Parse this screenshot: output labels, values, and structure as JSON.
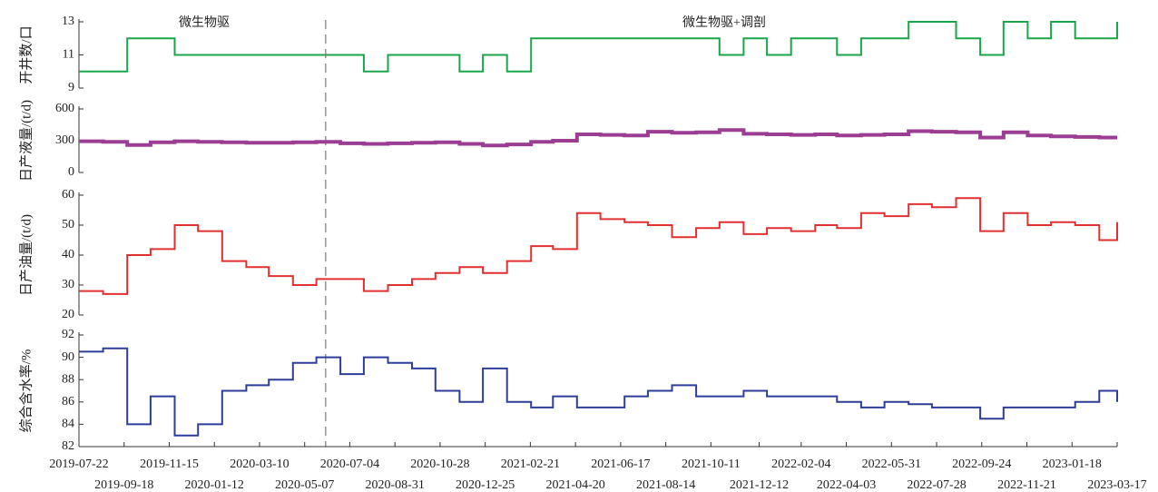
{
  "chart_data": [
    {
      "type": "line",
      "ylabel": "开井数/口",
      "ylim": [
        9,
        13
      ],
      "yticks": [
        9,
        11,
        13
      ],
      "annotations": [
        "微生物驱",
        "微生物驱+调剖"
      ],
      "vline": "2020-06-03",
      "x": [
        "2019-07-22",
        "2019-08-22",
        "2019-09-22",
        "2019-10-22",
        "2019-11-22",
        "2019-12-22",
        "2020-01-22",
        "2020-02-22",
        "2020-03-22",
        "2020-04-22",
        "2020-05-22",
        "2020-06-22",
        "2020-07-22",
        "2020-08-22",
        "2020-09-22",
        "2020-10-22",
        "2020-11-22",
        "2020-12-22",
        "2021-01-22",
        "2021-02-22",
        "2021-03-22",
        "2021-04-22",
        "2021-05-22",
        "2021-06-22",
        "2021-07-22",
        "2021-08-22",
        "2021-09-22",
        "2021-10-22",
        "2021-11-22",
        "2021-12-22",
        "2022-01-22",
        "2022-02-22",
        "2022-03-22",
        "2022-04-22",
        "2022-05-22",
        "2022-06-22",
        "2022-07-22",
        "2022-08-22",
        "2022-09-22",
        "2022-10-22",
        "2022-11-22",
        "2022-12-22",
        "2023-01-22",
        "2023-02-22",
        "2023-03-17"
      ],
      "series": [
        {
          "color": "#1aa54b",
          "values": [
            10,
            10,
            12,
            12,
            11,
            11,
            11,
            11,
            11,
            11,
            11,
            11,
            10,
            11,
            11,
            11,
            10,
            11,
            10,
            12,
            12,
            12,
            12,
            12,
            12,
            12,
            12,
            11,
            12,
            11,
            12,
            12,
            11,
            12,
            12,
            13,
            13,
            12,
            11,
            13,
            12,
            13,
            12,
            12,
            13
          ]
        }
      ]
    },
    {
      "type": "line",
      "ylabel": "日产液量/(t/d)",
      "ylim": [
        0,
        600
      ],
      "yticks": [
        0,
        300,
        600
      ],
      "x": [
        "2019-07-22",
        "2019-08-22",
        "2019-09-22",
        "2019-10-22",
        "2019-11-22",
        "2019-12-22",
        "2020-01-22",
        "2020-02-22",
        "2020-03-22",
        "2020-04-22",
        "2020-05-22",
        "2020-06-22",
        "2020-07-22",
        "2020-08-22",
        "2020-09-22",
        "2020-10-22",
        "2020-11-22",
        "2020-12-22",
        "2021-01-22",
        "2021-02-22",
        "2021-03-22",
        "2021-04-22",
        "2021-05-22",
        "2021-06-22",
        "2021-07-22",
        "2021-08-22",
        "2021-09-22",
        "2021-10-22",
        "2021-11-22",
        "2021-12-22",
        "2022-01-22",
        "2022-02-22",
        "2022-03-22",
        "2022-04-22",
        "2022-05-22",
        "2022-06-22",
        "2022-07-22",
        "2022-08-22",
        "2022-09-22",
        "2022-10-22",
        "2022-11-22",
        "2022-12-22",
        "2023-01-22",
        "2023-02-22",
        "2023-03-17"
      ],
      "series": [
        {
          "color": "#9b3d93",
          "values": [
            295,
            290,
            260,
            285,
            295,
            290,
            285,
            280,
            280,
            285,
            290,
            275,
            270,
            275,
            280,
            285,
            270,
            255,
            265,
            290,
            300,
            360,
            355,
            350,
            385,
            375,
            380,
            400,
            365,
            360,
            355,
            360,
            350,
            355,
            360,
            390,
            385,
            380,
            330,
            380,
            350,
            340,
            335,
            330,
            330
          ]
        }
      ]
    },
    {
      "type": "line",
      "ylabel": "日产油量/(t/d)",
      "ylim": [
        20,
        60
      ],
      "yticks": [
        20,
        30,
        40,
        50,
        60
      ],
      "x": [
        "2019-07-22",
        "2019-08-22",
        "2019-09-22",
        "2019-10-22",
        "2019-11-22",
        "2019-12-22",
        "2020-01-22",
        "2020-02-22",
        "2020-03-22",
        "2020-04-22",
        "2020-05-22",
        "2020-06-22",
        "2020-07-22",
        "2020-08-22",
        "2020-09-22",
        "2020-10-22",
        "2020-11-22",
        "2020-12-22",
        "2021-01-22",
        "2021-02-22",
        "2021-03-22",
        "2021-04-22",
        "2021-05-22",
        "2021-06-22",
        "2021-07-22",
        "2021-08-22",
        "2021-09-22",
        "2021-10-22",
        "2021-11-22",
        "2021-12-22",
        "2022-01-22",
        "2022-02-22",
        "2022-03-22",
        "2022-04-22",
        "2022-05-22",
        "2022-06-22",
        "2022-07-22",
        "2022-08-22",
        "2022-09-22",
        "2022-10-22",
        "2022-11-22",
        "2022-12-22",
        "2023-01-22",
        "2023-02-22",
        "2023-03-17"
      ],
      "series": [
        {
          "color": "#e03030",
          "values": [
            28,
            27,
            40,
            42,
            50,
            48,
            38,
            36,
            33,
            30,
            32,
            32,
            28,
            30,
            32,
            34,
            36,
            34,
            38,
            43,
            42,
            54,
            52,
            51,
            50,
            46,
            49,
            51,
            47,
            49,
            48,
            50,
            49,
            54,
            53,
            57,
            56,
            59,
            48,
            54,
            50,
            51,
            50,
            45,
            51
          ]
        }
      ]
    },
    {
      "type": "line",
      "ylabel": "综合含水率/%",
      "ylim": [
        82,
        92
      ],
      "yticks": [
        82,
        84,
        86,
        88,
        90,
        92
      ],
      "xlim": [
        "2019-07-22",
        "2023-03-17"
      ],
      "xticks": [
        "2019-07-22",
        "2019-09-18",
        "2019-11-15",
        "2020-01-12",
        "2020-03-10",
        "2020-05-07",
        "2020-07-04",
        "2020-08-31",
        "2020-10-28",
        "2020-12-25",
        "2021-02-21",
        "2021-04-20",
        "2021-06-17",
        "2021-08-14",
        "2021-10-11",
        "2021-12-12",
        "2022-02-04",
        "2022-04-03",
        "2022-05-31",
        "2022-07-28",
        "2022-09-24",
        "2022-11-21",
        "2023-01-18",
        "2023-03-17"
      ],
      "x": [
        "2019-07-22",
        "2019-08-22",
        "2019-09-22",
        "2019-10-22",
        "2019-11-22",
        "2019-12-22",
        "2020-01-22",
        "2020-02-22",
        "2020-03-22",
        "2020-04-22",
        "2020-05-22",
        "2020-06-22",
        "2020-07-22",
        "2020-08-22",
        "2020-09-22",
        "2020-10-22",
        "2020-11-22",
        "2020-12-22",
        "2021-01-22",
        "2021-02-22",
        "2021-03-22",
        "2021-04-22",
        "2021-05-22",
        "2021-06-22",
        "2021-07-22",
        "2021-08-22",
        "2021-09-22",
        "2021-10-22",
        "2021-11-22",
        "2021-12-22",
        "2022-01-22",
        "2022-02-22",
        "2022-03-22",
        "2022-04-22",
        "2022-05-22",
        "2022-06-22",
        "2022-07-22",
        "2022-08-22",
        "2022-09-22",
        "2022-10-22",
        "2022-11-22",
        "2022-12-22",
        "2023-01-22",
        "2023-02-22",
        "2023-03-17"
      ],
      "series": [
        {
          "color": "#2e3d98",
          "values": [
            90.5,
            90.8,
            84,
            86.5,
            83,
            84,
            87,
            87.5,
            88,
            89.5,
            90,
            88.5,
            90,
            89.5,
            89,
            87,
            86,
            89,
            86,
            85.5,
            86.5,
            85.5,
            85.5,
            86.5,
            87,
            87.5,
            86.5,
            86.5,
            87,
            86.5,
            86.5,
            86.5,
            86,
            85.5,
            86,
            85.8,
            85.5,
            85.5,
            84.5,
            85.5,
            85.5,
            85.5,
            86,
            87,
            86
          ]
        }
      ]
    }
  ]
}
